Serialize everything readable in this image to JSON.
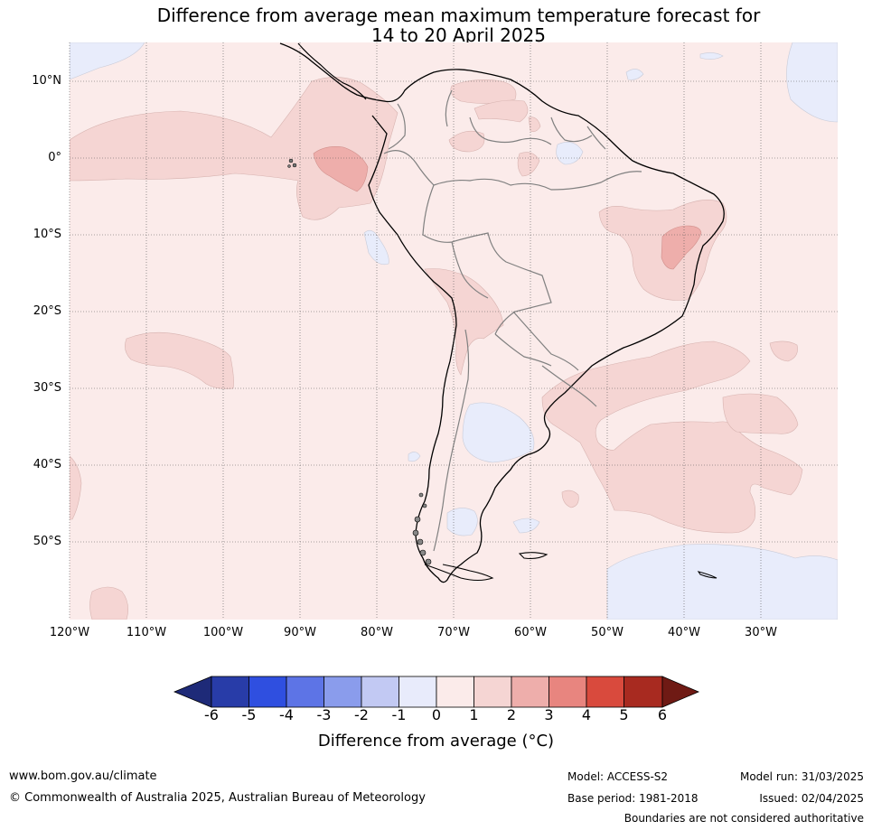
{
  "title": {
    "line1": "Difference from average mean maximum temperature forecast for",
    "line2": "14 to 20 April 2025"
  },
  "map": {
    "lat_labels": [
      "10°N",
      "0°",
      "10°S",
      "20°S",
      "30°S",
      "40°S",
      "50°S"
    ],
    "lon_labels": [
      "120°W",
      "110°W",
      "100°W",
      "90°W",
      "80°W",
      "70°W",
      "60°W",
      "50°W",
      "40°W",
      "30°W"
    ],
    "lat_range": [
      -60,
      15
    ],
    "lon_range": [
      -120,
      -20
    ],
    "grid": true,
    "background_anomaly": "0 to 1",
    "colors": {
      "ocean_land_base": "#fbebea",
      "anomaly_1_2": "#f5d5d3",
      "anomaly_2_3": "#eeaeab",
      "anomaly_neg_0_1": "#e8ecfb",
      "coast": "#000000",
      "border": "#808080",
      "grid": "#555555"
    }
  },
  "colorbar": {
    "ticks": [
      "-6",
      "-5",
      "-4",
      "-3",
      "-2",
      "-1",
      "0",
      "1",
      "2",
      "3",
      "4",
      "5",
      "6"
    ],
    "colors": [
      "#283ca8",
      "#2f4fe0",
      "#5d74e6",
      "#8a9cec",
      "#c2c9f3",
      "#e8ebfb",
      "#fbebea",
      "#f5d5d3",
      "#eeaeab",
      "#e8857f",
      "#d94a3d",
      "#a82a20"
    ],
    "under_color": "#1e2a78",
    "over_color": "#6f1a14",
    "label": "Difference from average (°C)"
  },
  "footer": {
    "url": "www.bom.gov.au/climate",
    "copyright": "© Commonwealth of Australia 2025, Australian Bureau of Meteorology",
    "model": "Model: ACCESS-S2",
    "base_period": "Base period: 1981-2018",
    "model_run": "Model run: 31/03/2025",
    "issued": "Issued: 02/04/2025",
    "disclaimer": "Boundaries are not considered authoritative"
  }
}
